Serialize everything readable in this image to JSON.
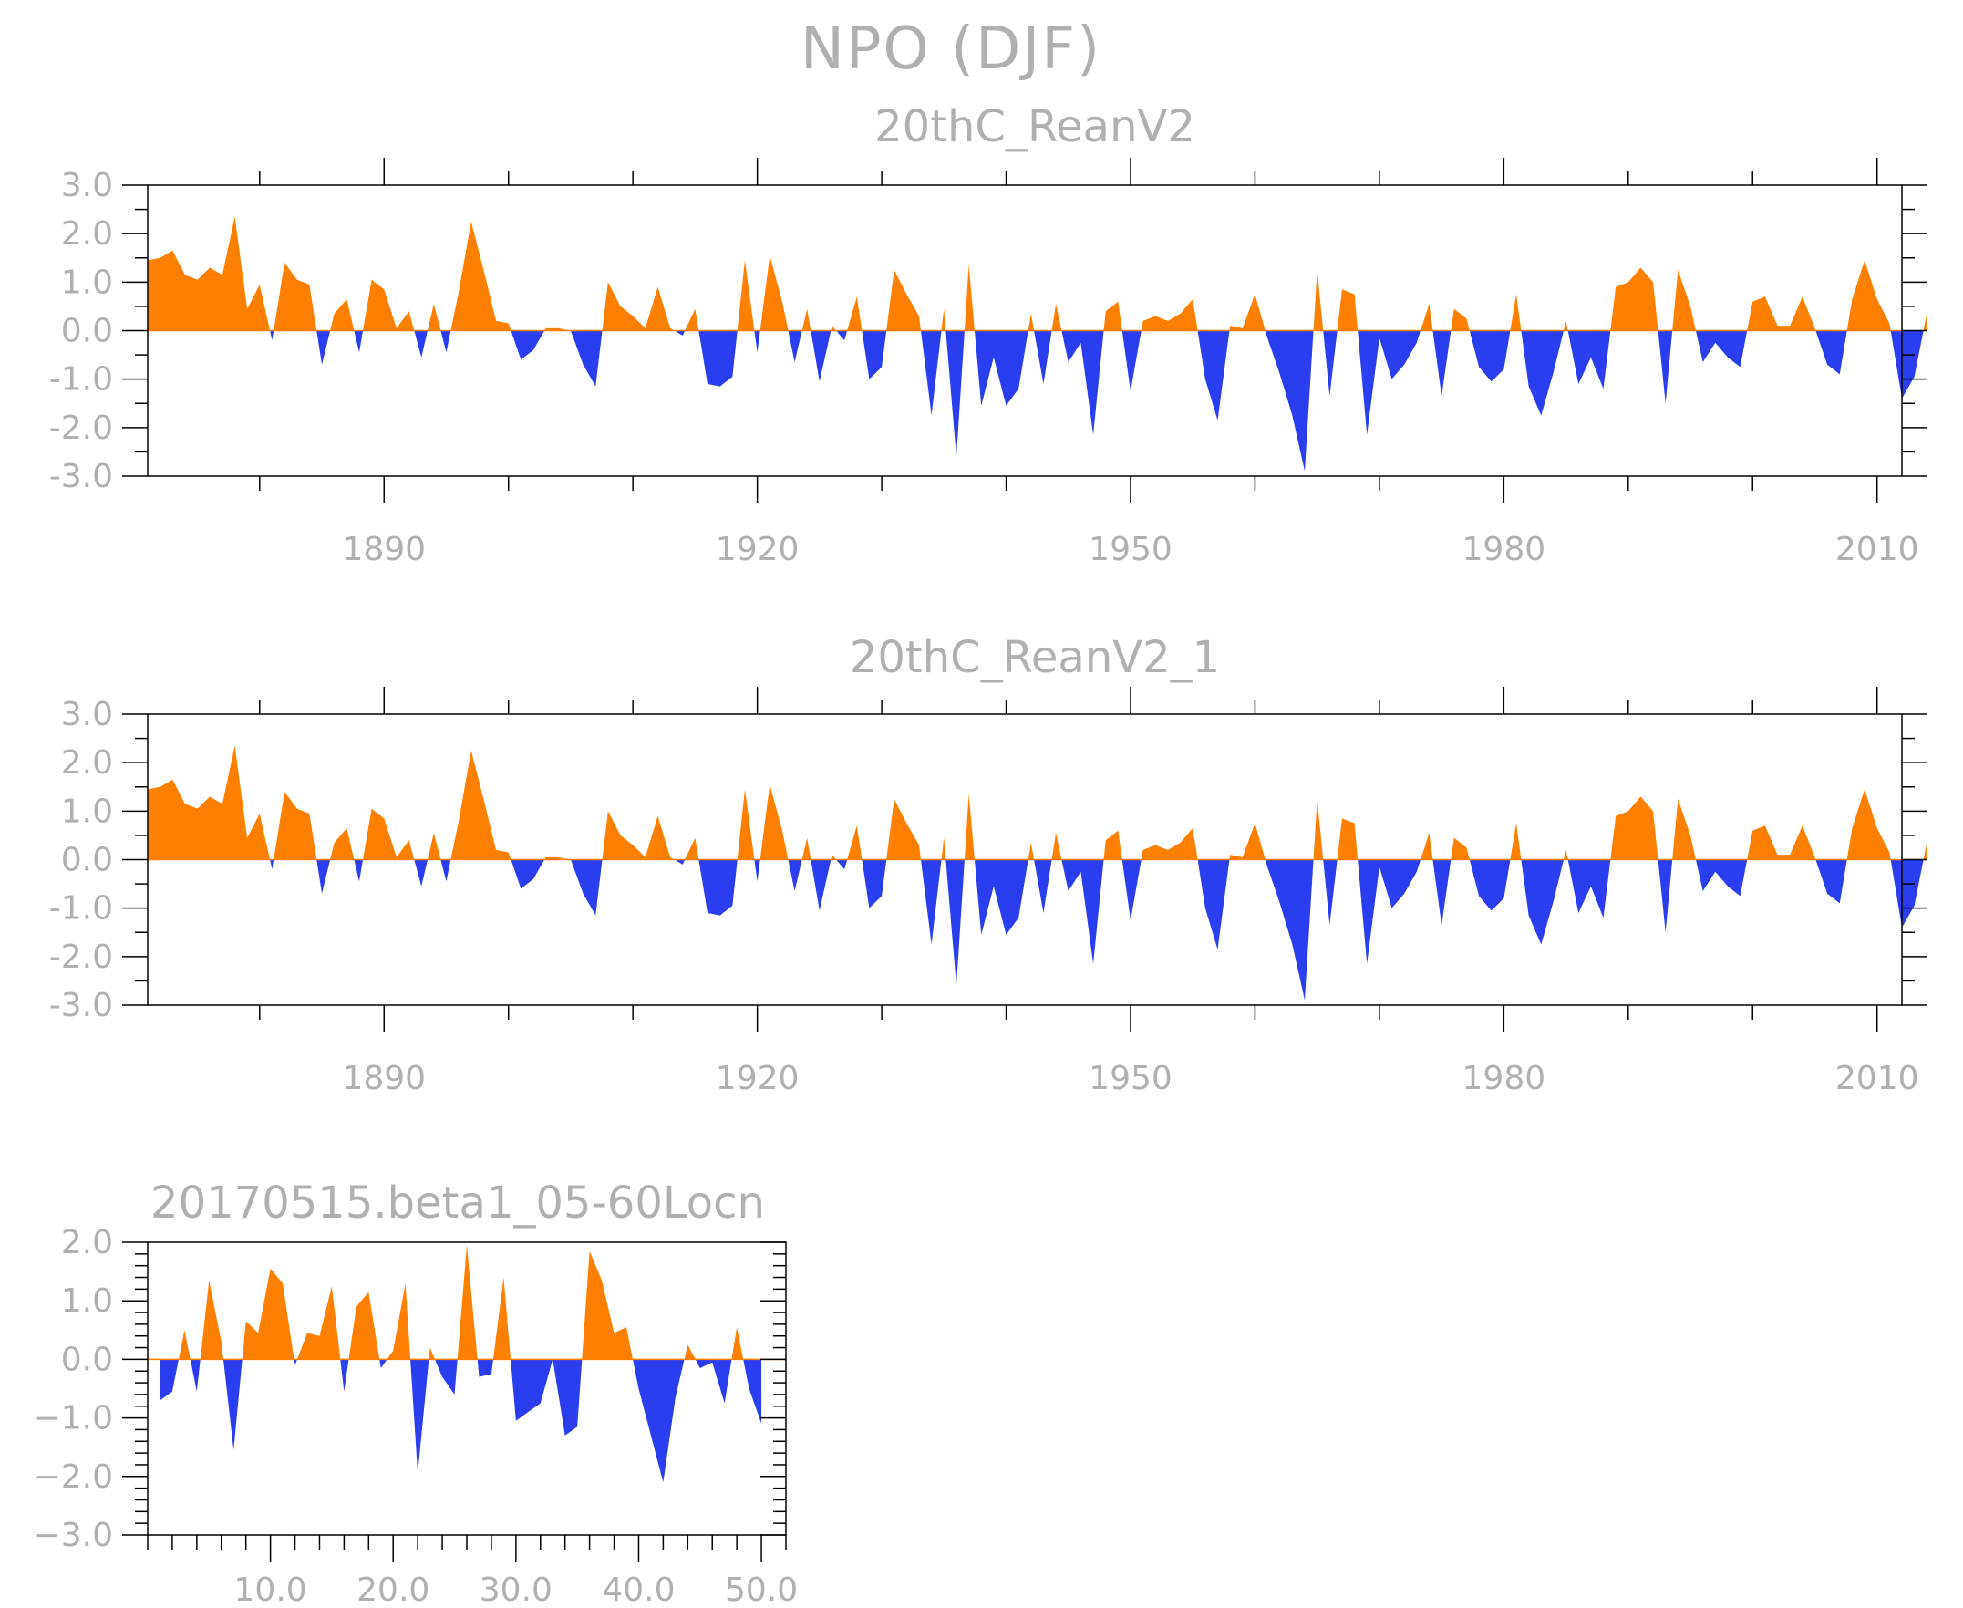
{
  "title": "NPO (DJF)",
  "colors": {
    "positive": "#ff8000",
    "negative": "#2a3ef0",
    "frame": "#000000",
    "text": "#b0b0b0"
  },
  "chart_data": [
    {
      "type": "area",
      "title": "20thC_ReanV2",
      "xlabel": "",
      "ylabel": "",
      "xlim": [
        1871,
        2012
      ],
      "ylim": [
        -3.0,
        3.0
      ],
      "xticks": [
        1890,
        1920,
        1950,
        1980,
        2010
      ],
      "xtick_labels": [
        "1890",
        "1920",
        "1950",
        "1980",
        "2010"
      ],
      "yticks": [
        3.0,
        2.0,
        1.0,
        0.0,
        -1.0,
        -2.0,
        -3.0
      ],
      "ytick_labels": [
        "3.0",
        "2.0",
        "1.0",
        "0.0",
        "-1.0",
        "-2.0",
        "-3.0"
      ],
      "x_start": 1871,
      "values": [
        1.45,
        1.5,
        1.65,
        1.15,
        1.05,
        1.3,
        1.15,
        2.35,
        0.45,
        0.95,
        -0.2,
        1.4,
        1.05,
        0.95,
        -0.7,
        0.35,
        0.65,
        -0.45,
        1.05,
        0.85,
        0.05,
        0.4,
        -0.55,
        0.55,
        -0.45,
        0.8,
        2.25,
        1.25,
        0.2,
        0.15,
        -0.6,
        -0.4,
        0.05,
        0.05,
        0.0,
        -0.7,
        -1.15,
        1.0,
        0.5,
        0.3,
        0.05,
        0.9,
        0.05,
        -0.1,
        0.45,
        -1.1,
        -1.15,
        -0.95,
        1.45,
        -0.45,
        1.55,
        0.6,
        -0.65,
        0.45,
        -1.05,
        0.1,
        -0.2,
        0.7,
        -1.0,
        -0.75,
        1.25,
        0.75,
        0.3,
        -1.75,
        0.45,
        -2.6,
        1.35,
        -1.55,
        -0.55,
        -1.55,
        -1.2,
        0.35,
        -1.1,
        0.55,
        -0.65,
        -0.25,
        -2.15,
        0.4,
        0.6,
        -1.25,
        0.2,
        0.3,
        0.2,
        0.35,
        0.65,
        -1.0,
        -1.85,
        0.1,
        0.05,
        0.75,
        -0.15,
        -0.9,
        -1.75,
        -2.9,
        1.25,
        -1.35,
        0.85,
        0.75,
        -2.15,
        -0.15,
        -1.0,
        -0.7,
        -0.25,
        0.55,
        -1.35,
        0.45,
        0.25,
        -0.75,
        -1.05,
        -0.8,
        0.75,
        -1.15,
        -1.75,
        -0.85,
        0.2,
        -1.1,
        -0.55,
        -1.2,
        0.9,
        1.0,
        1.3,
        1.0,
        -1.5,
        1.25,
        0.5,
        -0.65,
        -0.25,
        -0.55,
        -0.75,
        0.6,
        0.7,
        0.1,
        0.1,
        0.7,
        0.05,
        -0.7,
        -0.9,
        0.65,
        1.45,
        0.65,
        0.15,
        -1.4,
        -0.95,
        0.35
      ]
    },
    {
      "type": "area",
      "title": "20thC_ReanV2_1",
      "xlabel": "",
      "ylabel": "",
      "xlim": [
        1871,
        2012
      ],
      "ylim": [
        -3.0,
        3.0
      ],
      "xticks": [
        1890,
        1920,
        1950,
        1980,
        2010
      ],
      "xtick_labels": [
        "1890",
        "1920",
        "1950",
        "1980",
        "2010"
      ],
      "yticks": [
        3.0,
        2.0,
        1.0,
        0.0,
        -1.0,
        -2.0,
        -3.0
      ],
      "ytick_labels": [
        "3.0",
        "2.0",
        "1.0",
        "0.0",
        "-1.0",
        "-2.0",
        "-3.0"
      ],
      "x_start": 1871,
      "values": [
        1.45,
        1.5,
        1.65,
        1.15,
        1.05,
        1.3,
        1.15,
        2.35,
        0.45,
        0.95,
        -0.2,
        1.4,
        1.05,
        0.95,
        -0.7,
        0.35,
        0.65,
        -0.45,
        1.05,
        0.85,
        0.05,
        0.4,
        -0.55,
        0.55,
        -0.45,
        0.8,
        2.25,
        1.25,
        0.2,
        0.15,
        -0.6,
        -0.4,
        0.05,
        0.05,
        0.0,
        -0.7,
        -1.15,
        1.0,
        0.5,
        0.3,
        0.05,
        0.9,
        0.05,
        -0.1,
        0.45,
        -1.1,
        -1.15,
        -0.95,
        1.45,
        -0.45,
        1.55,
        0.6,
        -0.65,
        0.45,
        -1.05,
        0.1,
        -0.2,
        0.7,
        -1.0,
        -0.75,
        1.25,
        0.75,
        0.3,
        -1.75,
        0.45,
        -2.6,
        1.35,
        -1.55,
        -0.55,
        -1.55,
        -1.2,
        0.35,
        -1.1,
        0.55,
        -0.65,
        -0.25,
        -2.15,
        0.4,
        0.6,
        -1.25,
        0.2,
        0.3,
        0.2,
        0.35,
        0.65,
        -1.0,
        -1.85,
        0.1,
        0.05,
        0.75,
        -0.15,
        -0.9,
        -1.75,
        -2.9,
        1.25,
        -1.35,
        0.85,
        0.75,
        -2.15,
        -0.15,
        -1.0,
        -0.7,
        -0.25,
        0.55,
        -1.35,
        0.45,
        0.25,
        -0.75,
        -1.05,
        -0.8,
        0.75,
        -1.15,
        -1.75,
        -0.85,
        0.2,
        -1.1,
        -0.55,
        -1.2,
        0.9,
        1.0,
        1.3,
        1.0,
        -1.5,
        1.25,
        0.5,
        -0.65,
        -0.25,
        -0.55,
        -0.75,
        0.6,
        0.7,
        0.1,
        0.1,
        0.7,
        0.05,
        -0.7,
        -0.9,
        0.65,
        1.45,
        0.65,
        0.15,
        -1.4,
        -0.95,
        0.35
      ]
    },
    {
      "type": "area",
      "title": "20170515.beta1_05-60Locn",
      "xlabel": "",
      "ylabel": "",
      "xlim": [
        0,
        52
      ],
      "ylim": [
        -3.0,
        2.0
      ],
      "xticks": [
        10,
        20,
        30,
        40,
        50
      ],
      "xtick_labels": [
        "10.0",
        "20.0",
        "30.0",
        "40.0",
        "50.0"
      ],
      "yticks": [
        2.0,
        1.0,
        0.0,
        -1.0,
        -2.0,
        -3.0
      ],
      "ytick_labels": [
        "2.0",
        "1.0",
        "0.0",
        "−1.0",
        "−2.0",
        "−3.0"
      ],
      "x_start": 1,
      "values": [
        -0.7,
        -0.55,
        0.5,
        -0.55,
        1.35,
        0.3,
        -1.55,
        0.65,
        0.45,
        1.55,
        1.3,
        -0.1,
        0.45,
        0.4,
        1.25,
        -0.55,
        0.9,
        1.15,
        -0.15,
        0.15,
        1.3,
        -1.95,
        0.2,
        -0.3,
        -0.6,
        1.95,
        -0.3,
        -0.25,
        1.4,
        -1.05,
        -0.9,
        -0.75,
        0.0,
        -1.3,
        -1.15,
        1.85,
        1.35,
        0.45,
        0.55,
        -0.5,
        -1.3,
        -2.1,
        -0.65,
        0.25,
        -0.15,
        -0.05,
        -0.75,
        0.55,
        -0.5,
        -1.1
      ]
    }
  ]
}
